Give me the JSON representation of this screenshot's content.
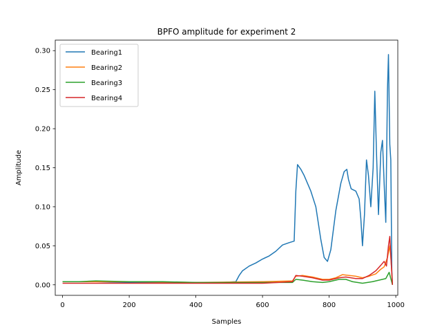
{
  "chart_data": {
    "type": "line",
    "title": "BPFO amplitude for experiment 2",
    "xlabel": "Samples",
    "ylabel": "Amplitude",
    "xlim": [
      -22,
      1006
    ],
    "ylim": [
      -0.0135,
      0.3135
    ],
    "xticks": [
      0,
      200,
      400,
      600,
      800,
      1000
    ],
    "xtick_labels": [
      "0",
      "200",
      "400",
      "600",
      "800",
      "1000"
    ],
    "yticks": [
      0.0,
      0.05,
      0.1,
      0.15,
      0.2,
      0.25,
      0.3
    ],
    "ytick_labels": [
      "0.00",
      "0.05",
      "0.10",
      "0.15",
      "0.20",
      "0.25",
      "0.30"
    ],
    "grid": false,
    "legend": "top-left",
    "series": [
      {
        "name": "Bearing1",
        "color": "#1f77b4",
        "points": [
          [
            0,
            0.004
          ],
          [
            100,
            0.004
          ],
          [
            200,
            0.003
          ],
          [
            300,
            0.003
          ],
          [
            400,
            0.003
          ],
          [
            480,
            0.003
          ],
          [
            520,
            0.004
          ],
          [
            530,
            0.012
          ],
          [
            540,
            0.018
          ],
          [
            560,
            0.024
          ],
          [
            580,
            0.028
          ],
          [
            600,
            0.033
          ],
          [
            620,
            0.037
          ],
          [
            640,
            0.043
          ],
          [
            660,
            0.051
          ],
          [
            680,
            0.054
          ],
          [
            695,
            0.056
          ],
          [
            700,
            0.12
          ],
          [
            705,
            0.154
          ],
          [
            715,
            0.148
          ],
          [
            725,
            0.14
          ],
          [
            735,
            0.13
          ],
          [
            745,
            0.12
          ],
          [
            760,
            0.1
          ],
          [
            775,
            0.058
          ],
          [
            785,
            0.035
          ],
          [
            795,
            0.03
          ],
          [
            805,
            0.045
          ],
          [
            820,
            0.095
          ],
          [
            835,
            0.13
          ],
          [
            845,
            0.145
          ],
          [
            853,
            0.148
          ],
          [
            858,
            0.135
          ],
          [
            866,
            0.123
          ],
          [
            880,
            0.12
          ],
          [
            890,
            0.11
          ],
          [
            895,
            0.085
          ],
          [
            900,
            0.05
          ],
          [
            906,
            0.09
          ],
          [
            912,
            0.16
          ],
          [
            918,
            0.14
          ],
          [
            925,
            0.1
          ],
          [
            932,
            0.15
          ],
          [
            937,
            0.248
          ],
          [
            942,
            0.17
          ],
          [
            948,
            0.09
          ],
          [
            955,
            0.17
          ],
          [
            960,
            0.185
          ],
          [
            965,
            0.13
          ],
          [
            970,
            0.08
          ],
          [
            975,
            0.25
          ],
          [
            978,
            0.295
          ],
          [
            982,
            0.18
          ],
          [
            985,
            0.16
          ],
          [
            988,
            0.02
          ],
          [
            990,
            0.0
          ]
        ]
      },
      {
        "name": "Bearing2",
        "color": "#ff7f0e",
        "points": [
          [
            0,
            0.004
          ],
          [
            200,
            0.004
          ],
          [
            400,
            0.003
          ],
          [
            600,
            0.004
          ],
          [
            690,
            0.005
          ],
          [
            700,
            0.011
          ],
          [
            720,
            0.012
          ],
          [
            750,
            0.01
          ],
          [
            780,
            0.007
          ],
          [
            800,
            0.007
          ],
          [
            820,
            0.009
          ],
          [
            840,
            0.013
          ],
          [
            860,
            0.012
          ],
          [
            880,
            0.011
          ],
          [
            900,
            0.009
          ],
          [
            920,
            0.011
          ],
          [
            940,
            0.014
          ],
          [
            955,
            0.02
          ],
          [
            965,
            0.023
          ],
          [
            975,
            0.035
          ],
          [
            982,
            0.05
          ],
          [
            986,
            0.03
          ],
          [
            990,
            0.0
          ]
        ]
      },
      {
        "name": "Bearing3",
        "color": "#2ca02c",
        "points": [
          [
            0,
            0.004
          ],
          [
            50,
            0.004
          ],
          [
            100,
            0.005
          ],
          [
            200,
            0.004
          ],
          [
            300,
            0.004
          ],
          [
            400,
            0.003
          ],
          [
            500,
            0.003
          ],
          [
            600,
            0.003
          ],
          [
            690,
            0.003
          ],
          [
            700,
            0.007
          ],
          [
            720,
            0.006
          ],
          [
            750,
            0.004
          ],
          [
            780,
            0.003
          ],
          [
            800,
            0.004
          ],
          [
            830,
            0.007
          ],
          [
            850,
            0.007
          ],
          [
            870,
            0.004
          ],
          [
            900,
            0.002
          ],
          [
            930,
            0.004
          ],
          [
            950,
            0.006
          ],
          [
            970,
            0.008
          ],
          [
            980,
            0.016
          ],
          [
            985,
            0.008
          ],
          [
            990,
            0.0
          ]
        ]
      },
      {
        "name": "Bearing4",
        "color": "#d62728",
        "points": [
          [
            0,
            0.002
          ],
          [
            100,
            0.002
          ],
          [
            200,
            0.002
          ],
          [
            300,
            0.002
          ],
          [
            400,
            0.002
          ],
          [
            500,
            0.002
          ],
          [
            600,
            0.002
          ],
          [
            690,
            0.004
          ],
          [
            700,
            0.012
          ],
          [
            720,
            0.011
          ],
          [
            750,
            0.009
          ],
          [
            780,
            0.006
          ],
          [
            800,
            0.006
          ],
          [
            830,
            0.009
          ],
          [
            850,
            0.01
          ],
          [
            880,
            0.008
          ],
          [
            900,
            0.008
          ],
          [
            920,
            0.012
          ],
          [
            940,
            0.018
          ],
          [
            955,
            0.025
          ],
          [
            965,
            0.03
          ],
          [
            972,
            0.024
          ],
          [
            978,
            0.05
          ],
          [
            982,
            0.062
          ],
          [
            986,
            0.03
          ],
          [
            990,
            0.0
          ]
        ]
      }
    ]
  }
}
